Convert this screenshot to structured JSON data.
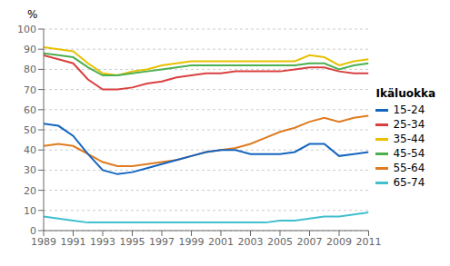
{
  "chart_data": {
    "type": "line",
    "ylabel": "%",
    "legend_title": "Ikäluokka",
    "x": [
      1989,
      1990,
      1991,
      1992,
      1993,
      1994,
      1995,
      1996,
      1997,
      1998,
      1999,
      2000,
      2001,
      2002,
      2003,
      2004,
      2005,
      2006,
      2007,
      2008,
      2009,
      2010,
      2011
    ],
    "series": [
      {
        "name": "35-44",
        "color": "#e8c000",
        "values": [
          91,
          90,
          89,
          83,
          78,
          77,
          79,
          80,
          82,
          83,
          84,
          84,
          84,
          84,
          84,
          84,
          84,
          84,
          87,
          86,
          82,
          84,
          85
        ]
      },
      {
        "name": "45-54",
        "color": "#4caf50",
        "values": [
          88,
          87,
          86,
          81,
          77,
          77,
          78,
          79,
          80,
          81,
          82,
          82,
          82,
          82,
          82,
          82,
          82,
          82,
          83,
          83,
          80,
          82,
          83
        ]
      },
      {
        "name": "25-34",
        "color": "#d94040",
        "values": [
          87,
          85,
          83,
          75,
          70,
          70,
          71,
          73,
          74,
          76,
          77,
          78,
          78,
          79,
          79,
          79,
          79,
          80,
          81,
          81,
          79,
          78,
          78
        ]
      },
      {
        "name": "55-64",
        "color": "#e07b20",
        "values": [
          42,
          43,
          42,
          38,
          34,
          32,
          32,
          33,
          34,
          35,
          37,
          39,
          40,
          41,
          43,
          46,
          49,
          51,
          54,
          56,
          54,
          56,
          57
        ]
      },
      {
        "name": "15-24",
        "color": "#1565c0",
        "values": [
          53,
          52,
          47,
          38,
          30,
          28,
          29,
          31,
          33,
          35,
          37,
          39,
          40,
          40,
          38,
          38,
          38,
          39,
          43,
          43,
          37,
          38,
          39
        ]
      },
      {
        "name": "65-74",
        "color": "#40bfcf",
        "values": [
          7,
          6,
          5,
          4,
          4,
          4,
          4,
          4,
          4,
          4,
          4,
          4,
          4,
          4,
          4,
          4,
          5,
          5,
          6,
          7,
          7,
          8,
          9
        ]
      }
    ],
    "xlim": [
      1989,
      2011
    ],
    "xticks": [
      1989,
      1991,
      1993,
      1995,
      1997,
      1999,
      2001,
      2003,
      2005,
      2007,
      2009,
      2011
    ],
    "ylim": [
      0,
      100
    ],
    "yticks": [
      0,
      10,
      20,
      30,
      40,
      50,
      60,
      70,
      80,
      90,
      100
    ],
    "grid": true,
    "legend": "right"
  }
}
